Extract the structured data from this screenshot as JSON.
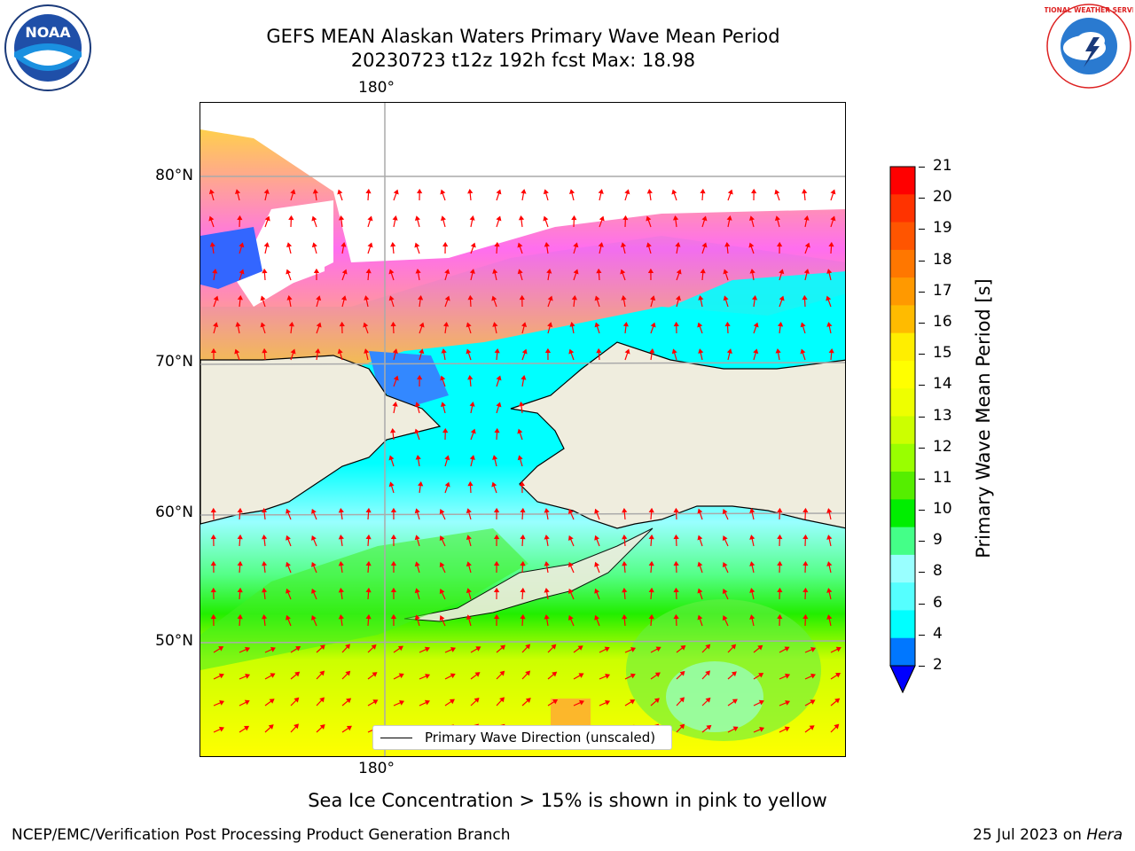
{
  "title_line1": "GEFS MEAN Alaskan Waters Primary Wave Mean Period",
  "title_line2": "20230723 t12z 192h fcst   Max: 18.98",
  "map": {
    "lon_label_top": "180°",
    "lon_label_bottom": "180°",
    "lat_labels": [
      "80°N",
      "70°N",
      "60°N",
      "50°N"
    ],
    "legend_text": "Primary Wave Direction (unscaled)",
    "colors": {
      "land": "#efedde",
      "ocean_grad": [
        "#00ffff",
        "#99ffff",
        "#55ff88",
        "#00e000",
        "#ccff00",
        "#ffff00"
      ],
      "ice": [
        "#ff55ee",
        "#ffaa44",
        "#ffdd44"
      ],
      "arrow": "#ff0000"
    }
  },
  "colorbar": {
    "label": "Primary Wave Mean Period [s]",
    "ticks": [
      "21",
      "20",
      "19",
      "18",
      "17",
      "16",
      "15",
      "14",
      "13",
      "12",
      "11",
      "10",
      "9",
      "8",
      "6",
      "4",
      "2"
    ],
    "colors": [
      "#ff0000",
      "#ff3300",
      "#ff5500",
      "#ff7700",
      "#ff9900",
      "#ffbb00",
      "#ffee00",
      "#ffff00",
      "#eeff00",
      "#ccff00",
      "#99ff00",
      "#55ee00",
      "#00ee00",
      "#44ff88",
      "#99ffff",
      "#55ffff",
      "#00ffff",
      "#0077ff"
    ],
    "extend_color": "#0000ff"
  },
  "caption": "Sea Ice Concentration > 15% is shown in pink to yellow",
  "footer_left": "NCEP/EMC/Verification Post Processing Product Generation Branch",
  "footer_right_date": "25 Jul 2023 on",
  "footer_right_host": "Hera",
  "logos": {
    "left": "NOAA",
    "right": "NATIONAL WEATHER SERVICE"
  }
}
